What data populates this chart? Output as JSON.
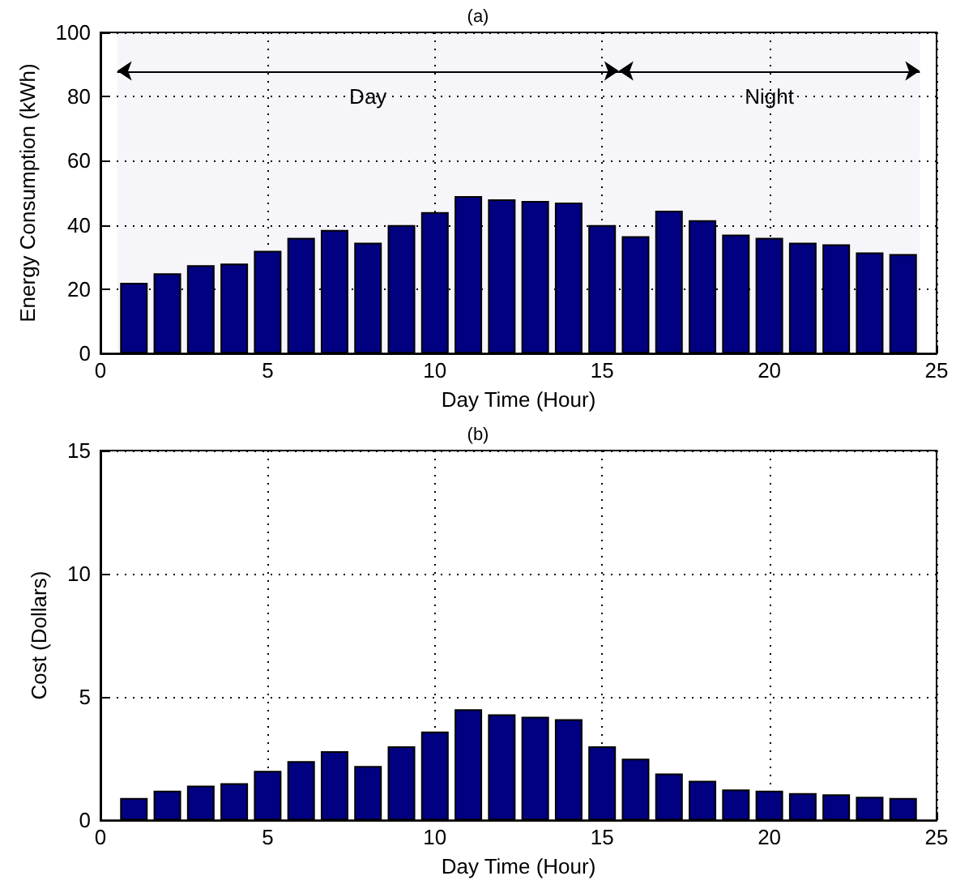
{
  "chart_data": [
    {
      "type": "bar",
      "title": "(a)",
      "xlabel": "Day Time (Hour)",
      "ylabel": "Energy Consumption (kWh)",
      "x": [
        1,
        2,
        3,
        4,
        5,
        6,
        7,
        8,
        9,
        10,
        11,
        12,
        13,
        14,
        15,
        16,
        17,
        18,
        19,
        20,
        21,
        22,
        23,
        24
      ],
      "values": [
        22,
        25,
        27.5,
        28,
        32,
        36,
        38.5,
        34.5,
        40,
        44,
        49,
        48,
        47.5,
        47,
        40,
        36.5,
        44.5,
        41.5,
        37,
        36,
        34.5,
        34,
        31.5,
        31
      ],
      "color": "#000080",
      "xlim": [
        0,
        25
      ],
      "xticks": [
        0,
        5,
        10,
        15,
        20,
        25
      ],
      "ylim": [
        0,
        100
      ],
      "yticks": [
        0,
        20,
        40,
        60,
        80,
        100
      ],
      "grid": true,
      "bands": [
        {
          "axis": "x",
          "from": 0.5,
          "to": 15.5,
          "label": "Day"
        },
        {
          "axis": "x",
          "from": 15.5,
          "to": 24.5,
          "label": "Night"
        }
      ]
    },
    {
      "type": "bar",
      "title": "(b)",
      "xlabel": "Day Time (Hour)",
      "ylabel": "Cost (Dollars)",
      "x": [
        1,
        2,
        3,
        4,
        5,
        6,
        7,
        8,
        9,
        10,
        11,
        12,
        13,
        14,
        15,
        16,
        17,
        18,
        19,
        20,
        21,
        22,
        23,
        24
      ],
      "values": [
        0.9,
        1.2,
        1.4,
        1.5,
        2.0,
        2.4,
        2.8,
        2.2,
        3.0,
        3.6,
        4.5,
        4.3,
        4.2,
        4.1,
        3.0,
        2.5,
        1.9,
        1.6,
        1.25,
        1.2,
        1.1,
        1.05,
        0.95,
        0.9
      ],
      "color": "#000080",
      "xlim": [
        0,
        25
      ],
      "xticks": [
        0,
        5,
        10,
        15,
        20,
        25
      ],
      "ylim": [
        0,
        15
      ],
      "yticks": [
        0,
        5,
        10,
        15
      ],
      "grid": true
    }
  ]
}
